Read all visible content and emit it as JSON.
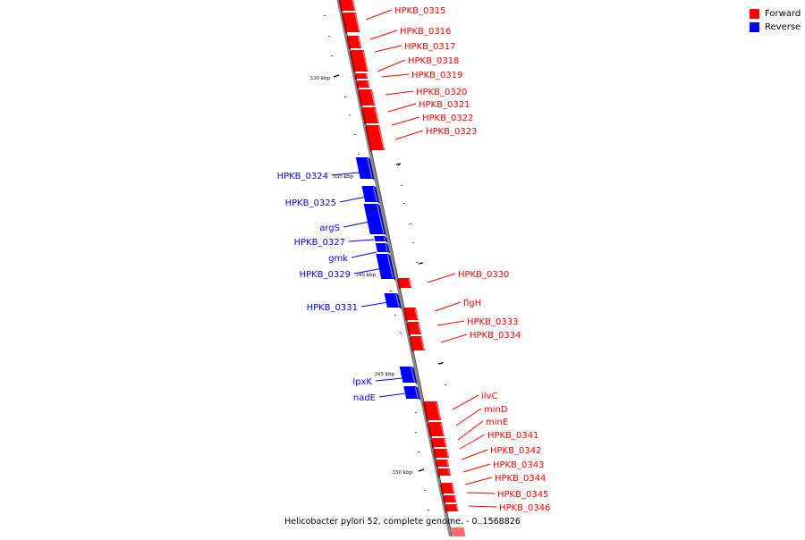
{
  "colors": {
    "forward": "#ff0000",
    "reverse": "#0000ff",
    "forward_side": "#a80000",
    "forward_shadow": "#ff8a8a",
    "reverse_side": "#0000aa",
    "reverse_shadow": "#8a8aff",
    "backbone": "#8a8a8a",
    "tick": "#000000"
  },
  "legend": [
    {
      "label": "Forward",
      "color": "#ff0000"
    },
    {
      "label": "Reverse",
      "color": "#0000ff"
    }
  ],
  "caption": "Helicobacter pylori 52, complete genome. - 0..1568826",
  "scale_labels": [
    "330 kbp",
    "335 kbp",
    "340 kbp",
    "345 kbp",
    "350 kbp"
  ],
  "forward_genes": [
    "HPKB_0315",
    "HPKB_0316",
    "HPKB_0317",
    "HPKB_0318",
    "HPKB_0319",
    "HPKB_0320",
    "HPKB_0321",
    "HPKB_0322",
    "HPKB_0323",
    "HPKB_0330",
    "flgH",
    "HPKB_0333",
    "HPKB_0334",
    "ilvC",
    "minD",
    "minE",
    "HPKB_0341",
    "HPKB_0342",
    "HPKB_0343",
    "HPKB_0344",
    "HPKB_0345",
    "HPKB_0346"
  ],
  "reverse_genes": [
    "HPKB_0324",
    "HPKB_0325",
    "argS",
    "HPKB_0327",
    "gmk",
    "HPKB_0329",
    "HPKB_0331",
    "lpxK",
    "nadE"
  ]
}
